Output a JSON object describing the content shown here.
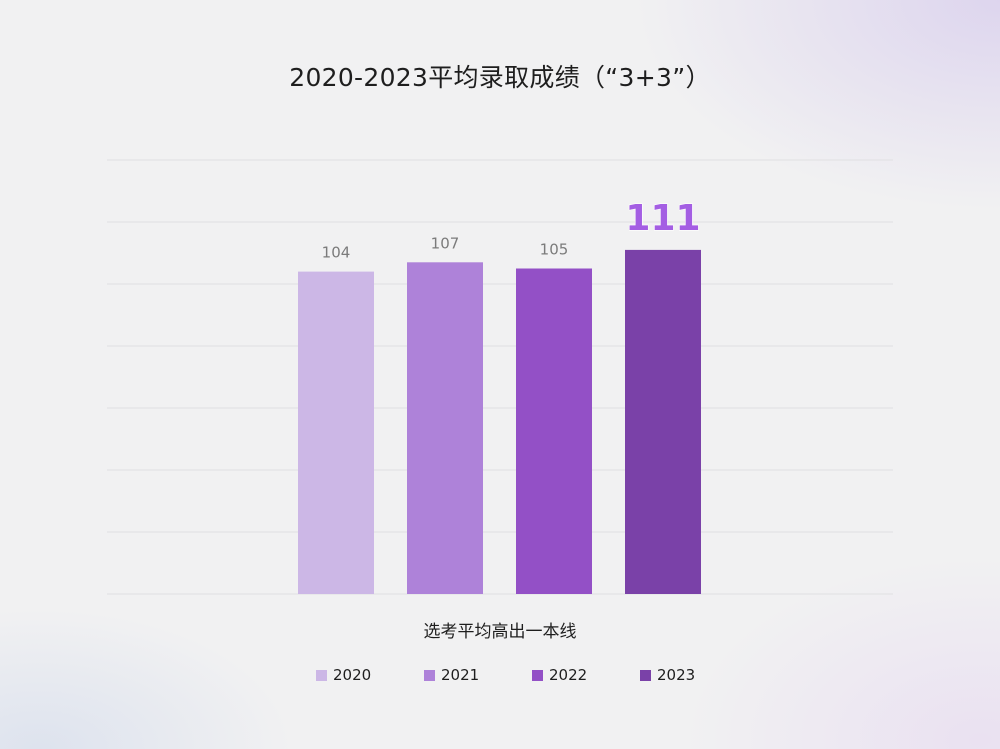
{
  "title": "2020-2023平均录取成绩（“3+3”）",
  "chart_data": {
    "type": "bar",
    "title": "2020-2023平均录取成绩（“3+3”）",
    "categories": [
      "选考平均高出一本线"
    ],
    "series": [
      {
        "name": "2020",
        "values": [
          104
        ],
        "color": "#ccb7e6"
      },
      {
        "name": "2021",
        "values": [
          107
        ],
        "color": "#ae82d9"
      },
      {
        "name": "2022",
        "values": [
          105
        ],
        "color": "#9350c6"
      },
      {
        "name": "2023",
        "values": [
          111
        ],
        "color": "#7a41a8"
      }
    ],
    "highlight_series": "2023",
    "highlight_color": "#a45ee3",
    "xlabel": "选考平均高出一本线",
    "ylabel": "",
    "ylim": [
      0,
      140
    ],
    "grid": true,
    "legend_position": "bottom"
  }
}
